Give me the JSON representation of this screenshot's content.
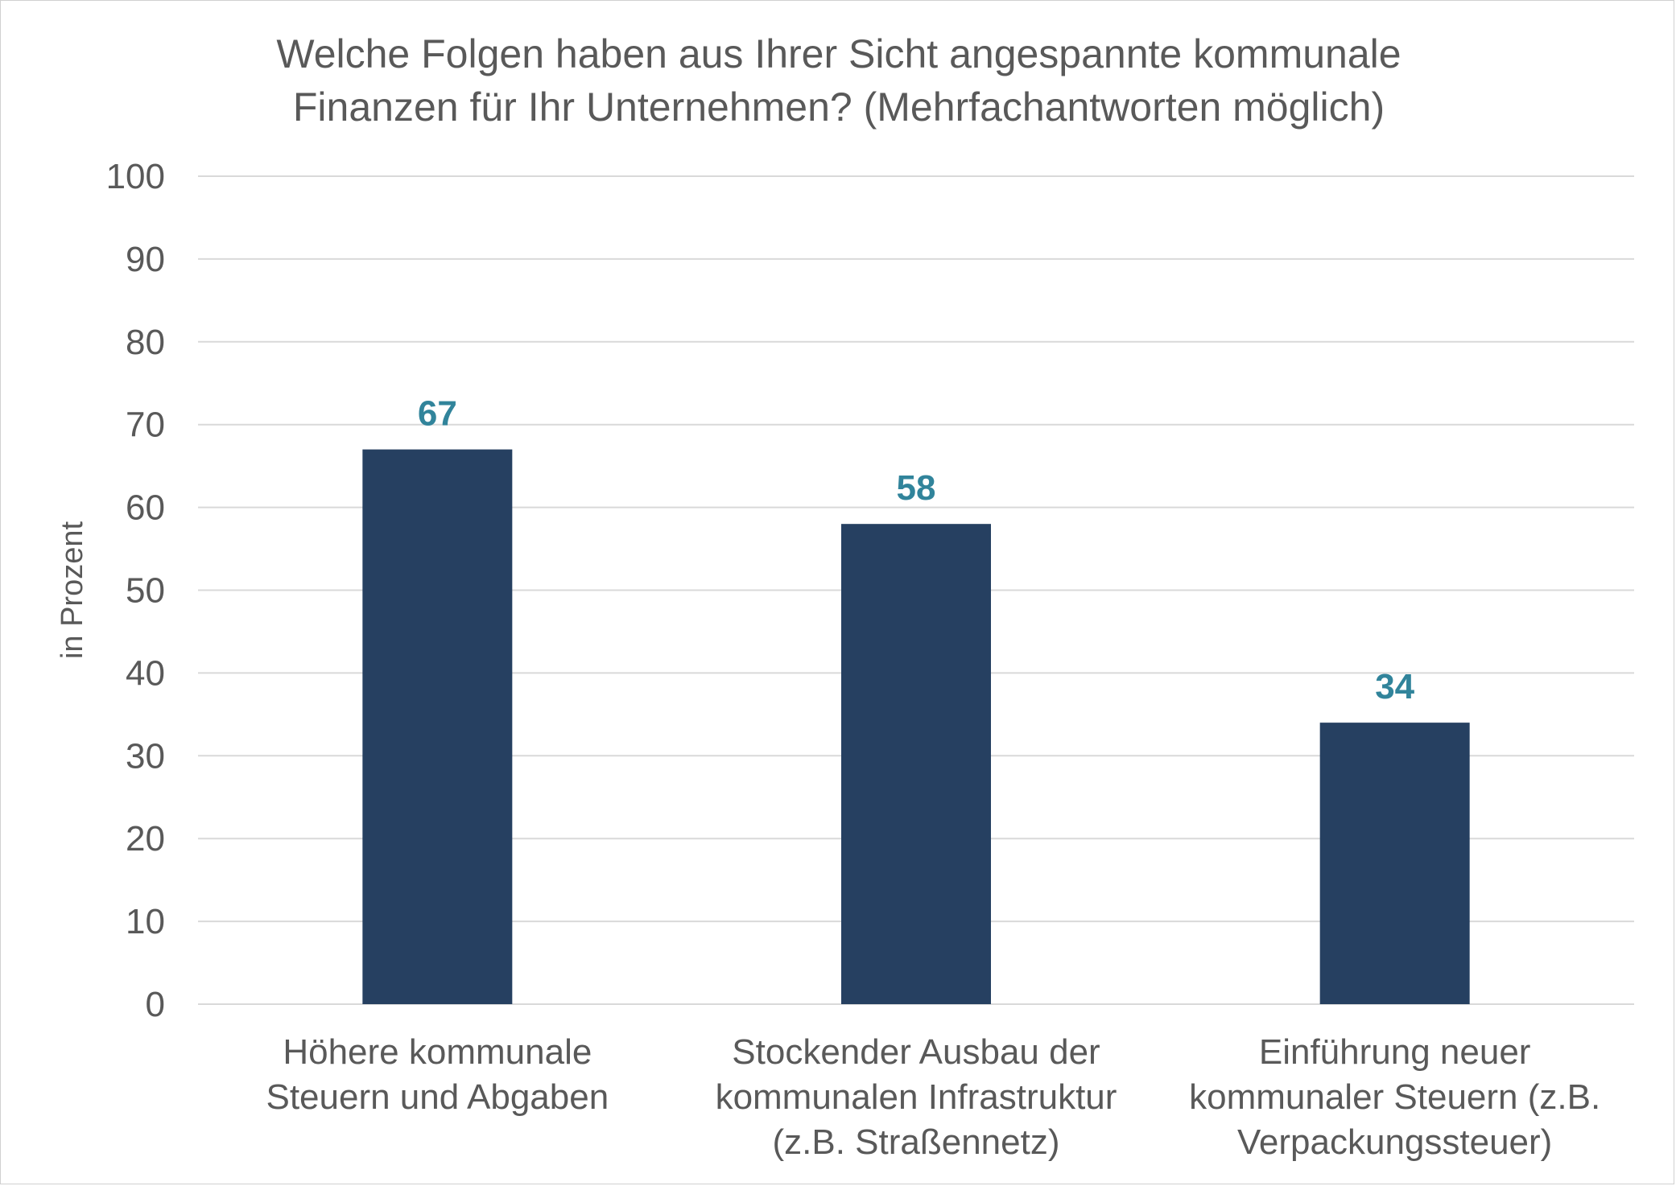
{
  "chart_data": {
    "type": "bar",
    "title": [
      "Welche Folgen haben aus Ihrer Sicht angespannte kommunale",
      "Finanzen für Ihr Unternehmen? (Mehrfachantworten möglich)"
    ],
    "categories": [
      [
        "Höhere kommunale",
        "Steuern und Abgaben"
      ],
      [
        "Stockender Ausbau der",
        "kommunalen Infrastruktur",
        "(z.B. Straßennetz)"
      ],
      [
        "Einführung neuer",
        "kommunaler Steuern (z.B.",
        "Verpackungssteuer)"
      ]
    ],
    "values": [
      67,
      58,
      34
    ],
    "data_labels": [
      "67",
      "58",
      "34"
    ],
    "ylabel": "in Prozent",
    "xlabel": "",
    "ylim": [
      0,
      100
    ],
    "yticks": [
      0,
      10,
      20,
      30,
      40,
      50,
      60,
      70,
      80,
      90,
      100
    ],
    "grid": true,
    "colors": {
      "bar": "#264061",
      "data_label": "#31849b",
      "text": "#595959",
      "gridline": "#d9d9d9"
    }
  }
}
